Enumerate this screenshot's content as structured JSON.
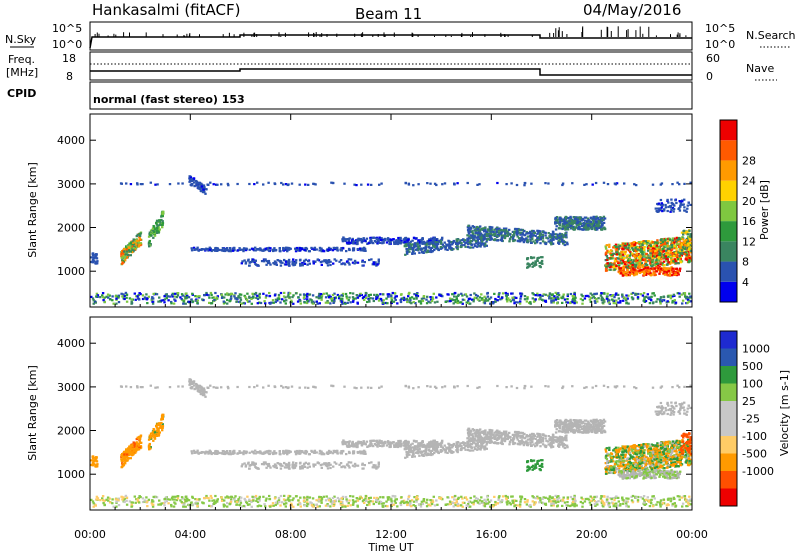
{
  "header": {
    "station": "Hankasalmi (fitACF)",
    "beam": "Beam 11",
    "date": "04/May/2016"
  },
  "top_panel": {
    "nsky_label": "N.Sky",
    "nsky_top": "10^5",
    "nsky_bottom": "10^0",
    "nsearch_label": "N.Search",
    "nsearch_top": "10^5",
    "nsearch_bottom": "10^0",
    "freq_label": "Freq.",
    "freq_unit": "[MHz]",
    "freq_top": "18",
    "freq_bottom": "8",
    "nave_label": "Nave",
    "nave_top": "60",
    "nave_bottom": "0",
    "cpid_label": "CPID",
    "cpid_text": "normal (fast stereo) 153"
  },
  "colors": {
    "power": [
      "#0000ee",
      "#2a52b0",
      "#3a8560",
      "#2e9a3c",
      "#7fc840",
      "#ffd200",
      "#ff9a00",
      "#ff5a00",
      "#ee0000"
    ],
    "velocity": [
      "#ee0000",
      "#ff5000",
      "#ff9a00",
      "#ffcc66",
      "#c8c8c8",
      "#c8c8c8",
      "#86c846",
      "#2e9a3c",
      "#2a58b0",
      "#1e2ad0"
    ],
    "ground_scatter": "#b4b4b4"
  },
  "chart_data": [
    {
      "type": "heatmap",
      "panel": "power",
      "xlabel": "",
      "ylabel": "Slant Range [km]",
      "xlim": [
        0,
        24
      ],
      "ylim": [
        180,
        4600
      ],
      "y_ticks": [
        "1000",
        "2000",
        "3000",
        "4000"
      ],
      "colorbar": {
        "label": "Power [dB]",
        "range": [
          0,
          32
        ],
        "ticks": [
          "4",
          "8",
          "12",
          "16",
          "20",
          "24",
          "28"
        ]
      }
    },
    {
      "type": "heatmap",
      "panel": "velocity",
      "xlabel": "Time UT",
      "ylabel": "Slant Range [km]",
      "xlim": [
        0,
        24
      ],
      "ylim": [
        180,
        4600
      ],
      "x_ticks": [
        "00:00",
        "04:00",
        "08:00",
        "12:00",
        "16:00",
        "20:00",
        "00:00"
      ],
      "y_ticks": [
        "1000",
        "2000",
        "3000",
        "4000"
      ],
      "colorbar": {
        "label": "Velocity [m s-1]",
        "ticks": [
          "1000",
          "500",
          "100",
          "25",
          "-25",
          "-100",
          "-500",
          "-1000"
        ]
      }
    }
  ]
}
